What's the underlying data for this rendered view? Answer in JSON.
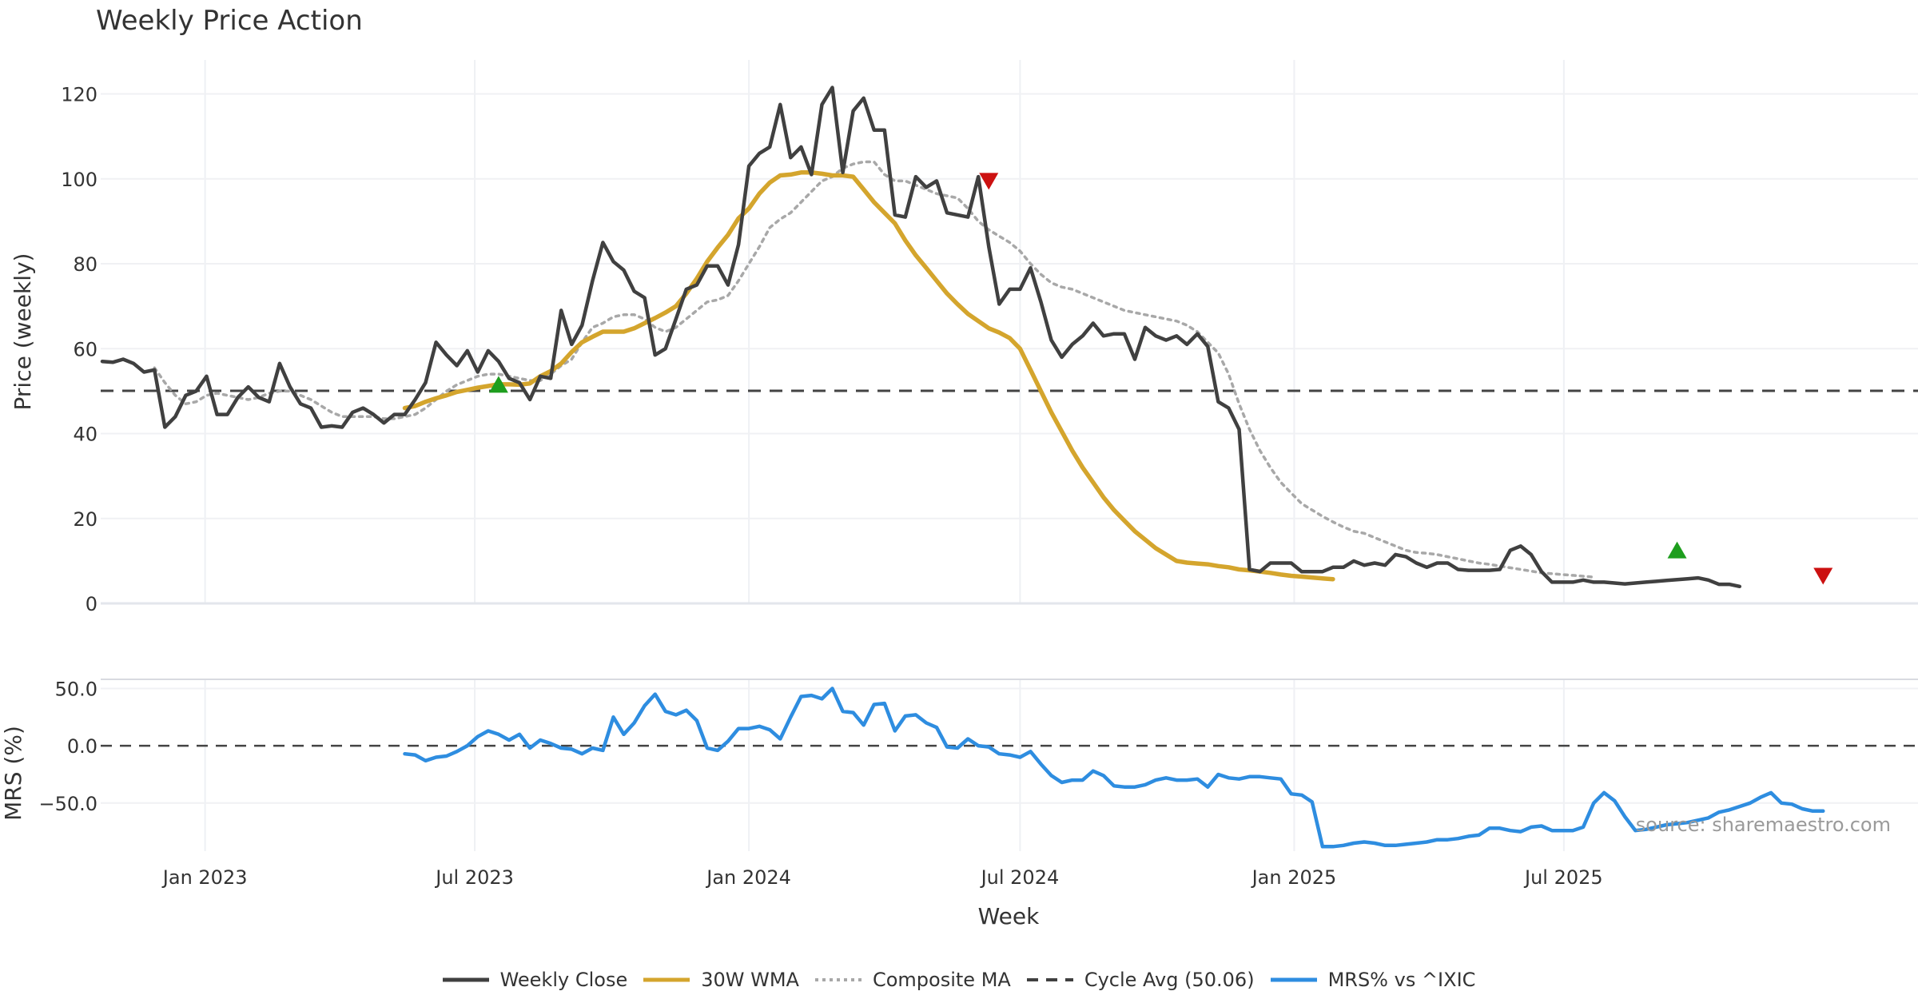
{
  "chart_data": [
    {
      "type": "line",
      "title": "Weekly Price Action",
      "ylabel": "Price (weekly)",
      "ylim": [
        0,
        128
      ],
      "yticks": [
        0,
        20,
        40,
        60,
        80,
        100,
        120
      ],
      "x_start": "2022-10-24",
      "x_step_days": 7,
      "x_ticks": [
        {
          "date": "2023-01-01",
          "label": "Jan 2023"
        },
        {
          "date": "2023-07-01",
          "label": "Jul 2023"
        },
        {
          "date": "2024-01-01",
          "label": "Jan 2024"
        },
        {
          "date": "2024-07-01",
          "label": "Jul 2024"
        },
        {
          "date": "2025-01-01",
          "label": "Jan 2025"
        },
        {
          "date": "2025-07-01",
          "label": "Jul 2025"
        }
      ],
      "cycle_avg": 50.06,
      "series": [
        {
          "name": "Weekly Close",
          "color": "#404040",
          "style": "solid",
          "start_index": 0,
          "values": [
            57,
            56.8,
            57.5,
            56.5,
            54.5,
            55,
            41.5,
            44,
            49,
            50,
            53.5,
            44.5,
            44.5,
            48.5,
            51,
            48.5,
            47.5,
            56.5,
            51,
            47,
            46,
            41.5,
            41.8,
            41.5,
            45,
            46,
            44.5,
            42.5,
            44.5,
            44.5,
            48,
            52,
            61.5,
            58.5,
            56,
            59.5,
            54.5,
            59.5,
            57,
            53,
            52,
            48,
            53.5,
            53,
            69,
            61,
            65.5,
            76,
            85,
            80.5,
            78.5,
            73.5,
            72,
            58.5,
            60,
            67,
            74,
            75,
            79.5,
            79.5,
            75,
            84.5,
            103,
            106,
            107.5,
            117.5,
            105,
            107.5,
            101,
            117.5,
            121.5,
            101.5,
            116,
            119,
            111.5,
            111.5,
            91.5,
            91,
            100.5,
            98,
            99.5,
            92,
            91.5,
            91,
            100.5,
            84,
            70.5,
            74,
            74,
            79,
            71,
            62,
            58,
            61,
            63,
            66,
            63,
            63.5,
            63.5,
            57.5,
            65,
            63,
            62,
            63,
            61,
            63.5,
            60.5,
            47.5,
            46,
            41,
            8,
            7.5,
            9.5,
            9.5,
            9.5,
            7.5,
            7.5,
            7.5,
            8.5,
            8.5,
            10,
            9,
            9.5,
            9,
            11.5,
            11,
            9.5,
            8.5,
            9.5,
            9.5,
            8,
            7.8,
            7.8,
            7.8,
            8,
            12.5,
            13.5,
            11.5,
            7.5,
            5,
            5,
            5,
            5.5,
            5,
            5,
            4.8,
            4.6,
            4.8,
            5,
            5.2,
            5.4,
            5.6,
            5.8,
            6,
            5.5,
            4.5,
            4.5,
            4
          ]
        },
        {
          "name": "30W WMA",
          "color": "#D4A52D",
          "style": "solid",
          "start_index": 29,
          "values": [
            46,
            46.5,
            47.5,
            48.3,
            49,
            49.8,
            50.3,
            50.8,
            51.2,
            51.6,
            51.6,
            51.5,
            51.8,
            53.5,
            54.7,
            56.5,
            59.2,
            61.5,
            62.8,
            64,
            64,
            64,
            64.8,
            66,
            67.2,
            68.5,
            70,
            73,
            76.5,
            80.5,
            83.8,
            86.8,
            90.7,
            93,
            96.5,
            99.1,
            100.8,
            101,
            101.5,
            101.5,
            101.2,
            100.8,
            100.8,
            100.5,
            97.5,
            94.5,
            92,
            89.5,
            85.5,
            82,
            79,
            76,
            73,
            70.5,
            68.2,
            66.5,
            64.8,
            63.8,
            62.5,
            60,
            55,
            50,
            45,
            40.5,
            36,
            32,
            28.5,
            25,
            22,
            19.5,
            17,
            15,
            13,
            11.5,
            10,
            9.6,
            9.4,
            9.2,
            8.8,
            8.5,
            8,
            7.8,
            7.5,
            7.2,
            6.8,
            6.5,
            6.3,
            6.1,
            5.9,
            5.7
          ]
        },
        {
          "name": "Composite MA",
          "color": "#A8A8A8",
          "style": "dotted",
          "start_index": 0,
          "values": [
            null,
            null,
            null,
            null,
            null,
            55.5,
            52,
            49,
            47,
            47.5,
            49,
            49.5,
            49,
            48.5,
            48,
            48.5,
            49.5,
            50,
            50,
            49,
            48,
            46.5,
            45,
            44,
            44,
            44,
            44,
            43.5,
            43.5,
            44,
            44.5,
            46,
            48,
            50,
            51.5,
            52.5,
            53.5,
            54,
            54,
            53.5,
            53,
            52.5,
            52.5,
            54,
            56,
            57.5,
            61.5,
            65,
            66,
            67.5,
            68,
            68,
            67,
            65,
            64,
            65,
            67,
            69,
            71,
            71.5,
            72.5,
            76,
            80,
            84,
            88.5,
            90.5,
            92,
            94.5,
            97,
            99.5,
            100.5,
            102.5,
            103.5,
            104,
            104,
            101,
            99.5,
            99.5,
            98.5,
            97.5,
            96.5,
            96,
            95.5,
            93,
            90,
            88,
            86.5,
            85,
            83,
            80,
            77.5,
            75.5,
            74.5,
            74,
            73,
            72,
            71,
            70,
            69,
            68.5,
            68,
            67.5,
            67,
            66.5,
            65.5,
            64,
            61.5,
            59,
            54,
            47,
            41,
            36,
            32,
            28.5,
            26,
            23.5,
            22,
            20.5,
            19.2,
            18,
            17,
            16.5,
            15.5,
            14.5,
            13.5,
            12.5,
            12,
            11.8,
            11.5,
            11,
            10.5,
            10,
            9.5,
            9.2,
            8.8,
            8.4,
            8,
            7.6,
            7.2,
            7,
            6.8,
            6.6,
            6.4,
            6.2
          ]
        }
      ],
      "markers": [
        {
          "type": "buy",
          "index": 38,
          "y": 51.5,
          "color": "#1E9E1E"
        },
        {
          "type": "sell",
          "index": 85,
          "y": 99.5,
          "color": "#CC1111"
        },
        {
          "type": "buy",
          "index": 151,
          "y": 12.5,
          "color": "#1E9E1E"
        },
        {
          "type": "sell",
          "index": 165,
          "y": 6.5,
          "color": "#CC1111"
        }
      ]
    },
    {
      "type": "line",
      "ylabel": "MRS (%)",
      "ylim": [
        -92,
        58
      ],
      "yticks": [
        {
          "v": 50,
          "label": "50.0"
        },
        {
          "v": 0,
          "label": "0.0"
        },
        {
          "v": -50,
          "label": "−50.0"
        }
      ],
      "series": [
        {
          "name": "MRS% vs ^IXIC",
          "color": "#2E8DE0",
          "style": "solid",
          "start_index": 29,
          "values": [
            -7,
            -8,
            -13,
            -10,
            -9,
            -5,
            0,
            8,
            13,
            10,
            5,
            10,
            -2,
            5,
            2,
            -2,
            -3,
            -7,
            -2,
            -4,
            25,
            10,
            20,
            35,
            45,
            30,
            27,
            31,
            22,
            -2,
            -4,
            4,
            15,
            15,
            17,
            14,
            6,
            25,
            43,
            44,
            41,
            50,
            30,
            29,
            18,
            36,
            37,
            13,
            26,
            27,
            20,
            16,
            -1,
            -2,
            6,
            0,
            -1,
            -7,
            -8,
            -10,
            -5,
            -16,
            -26,
            -32,
            -30,
            -30,
            -22,
            -26,
            -35,
            -36,
            -36,
            -34,
            -30,
            -28,
            -30,
            -30,
            -29,
            -36,
            -25,
            -28,
            -29,
            -27,
            -27,
            -28,
            -29,
            -42,
            -43,
            -49,
            -88,
            -88,
            -87,
            -85,
            -84,
            -85,
            -87,
            -87,
            -86,
            -85,
            -84,
            -82,
            -82,
            -81,
            -79,
            -78,
            -72,
            -72,
            -74,
            -75,
            -71,
            -70,
            -74,
            -74,
            -74,
            -71,
            -50,
            -41,
            -48,
            -62,
            -74,
            -73,
            -71,
            -69,
            -68,
            -67,
            -65,
            -63,
            -58,
            -56,
            -53,
            -50,
            -45,
            -41,
            -50,
            -51,
            -55,
            -57,
            -57
          ]
        }
      ]
    }
  ],
  "xlabel": "Week",
  "cycle_label": "Cycle Avg (50.06)",
  "source": "source: sharemaestro.com",
  "legend": [
    {
      "label": "Weekly Close",
      "color": "#404040",
      "style": "solid"
    },
    {
      "label": "30W WMA",
      "color": "#D4A52D",
      "style": "solid"
    },
    {
      "label": "Composite MA",
      "color": "#A8A8A8",
      "style": "dotted"
    },
    {
      "label": "Cycle Avg (50.06)",
      "color": "#404040",
      "style": "dashed"
    },
    {
      "label": "MRS% vs ^IXIC",
      "color": "#2E8DE0",
      "style": "solid"
    }
  ]
}
